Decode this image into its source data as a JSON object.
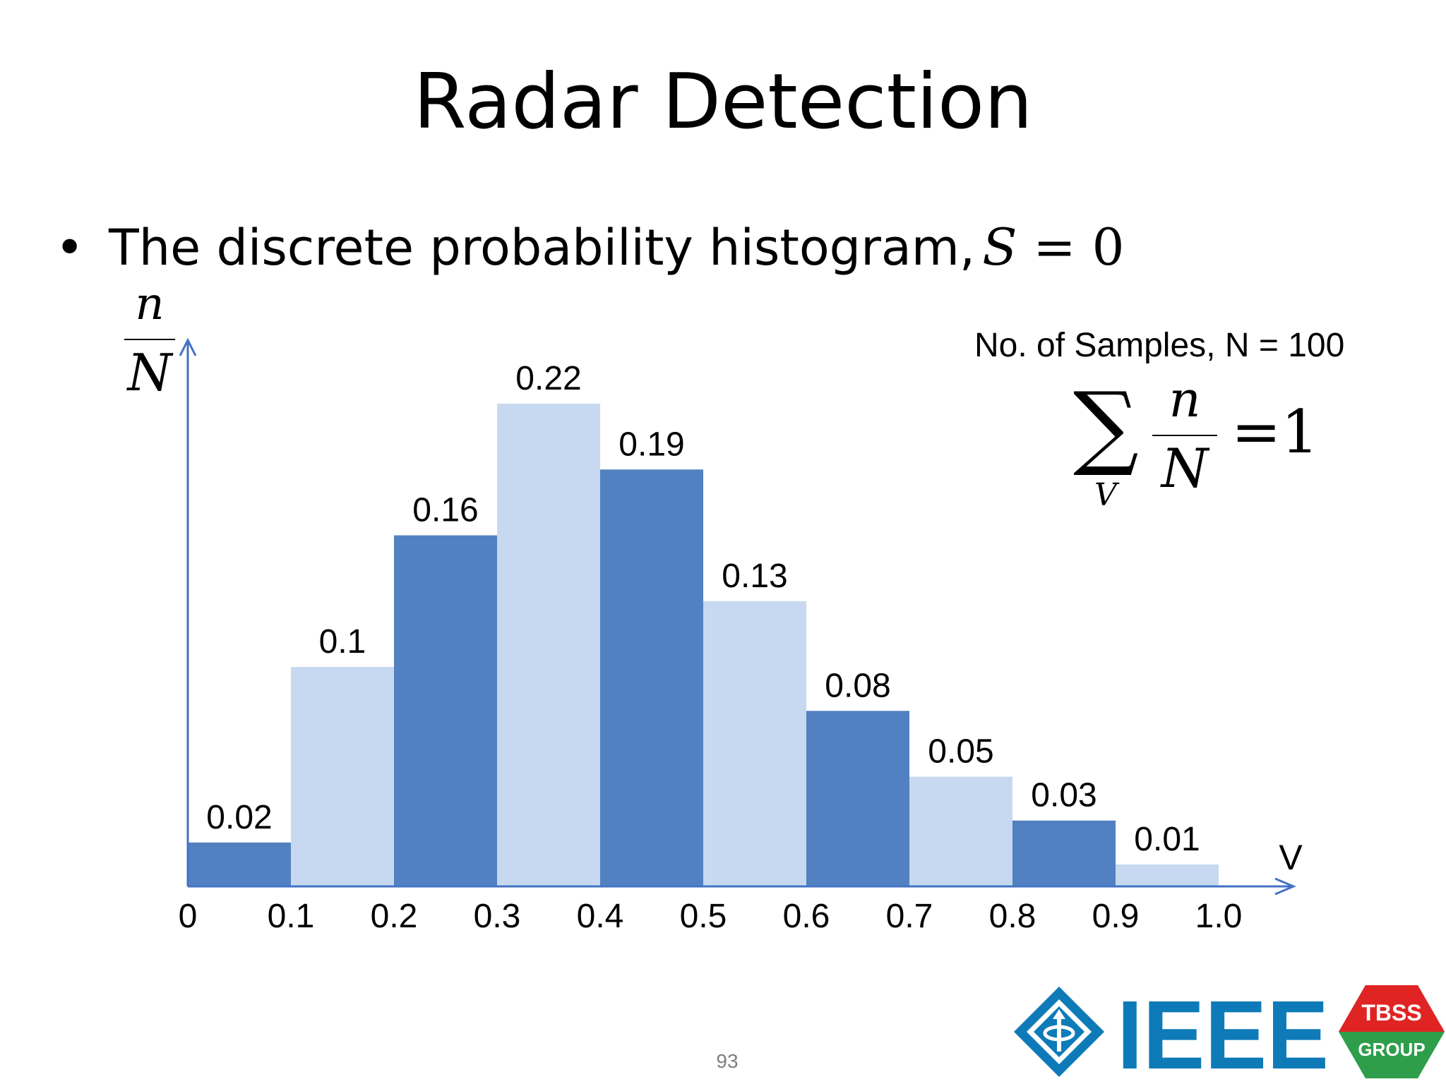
{
  "slide": {
    "title": "Radar Detection",
    "bullet": "The discrete probability histogram,",
    "bullet_math_var": "S",
    "bullet_math_rest": " = 0",
    "page_number": "93"
  },
  "y_axis_fraction": {
    "numerator": "n",
    "denominator": "N"
  },
  "samples_note": "No. of Samples, N = 100",
  "sum_formula": {
    "sigma": "∑",
    "subscript": "V",
    "numerator": "n",
    "denominator": "N",
    "equals": "=1"
  },
  "logos": {
    "ieee": "IEEE",
    "tbss_top": "TBSS",
    "tbss_bottom": "GROUP"
  },
  "colors": {
    "dark_bar": "#5181C0",
    "light_bar": "#C6D9F0",
    "axis": "#4472C4"
  },
  "chart_data": {
    "type": "bar",
    "x_label": "V",
    "y_label": "n/N",
    "bins": [
      {
        "from": 0.0,
        "to": 0.1,
        "value": 0.02,
        "label": "0.02",
        "shade": "dark"
      },
      {
        "from": 0.1,
        "to": 0.2,
        "value": 0.1,
        "label": "0.1",
        "shade": "light"
      },
      {
        "from": 0.2,
        "to": 0.3,
        "value": 0.16,
        "label": "0.16",
        "shade": "dark"
      },
      {
        "from": 0.3,
        "to": 0.4,
        "value": 0.22,
        "label": "0.22",
        "shade": "light"
      },
      {
        "from": 0.4,
        "to": 0.5,
        "value": 0.19,
        "label": "0.19",
        "shade": "dark"
      },
      {
        "from": 0.5,
        "to": 0.6,
        "value": 0.13,
        "label": "0.13",
        "shade": "light"
      },
      {
        "from": 0.6,
        "to": 0.7,
        "value": 0.08,
        "label": "0.08",
        "shade": "dark"
      },
      {
        "from": 0.7,
        "to": 0.8,
        "value": 0.05,
        "label": "0.05",
        "shade": "light"
      },
      {
        "from": 0.8,
        "to": 0.9,
        "value": 0.03,
        "label": "0.03",
        "shade": "dark"
      },
      {
        "from": 0.9,
        "to": 1.0,
        "value": 0.01,
        "label": "0.01",
        "shade": "light"
      }
    ],
    "x_ticks": [
      "0",
      "0.1",
      "0.2",
      "0.3",
      "0.4",
      "0.5",
      "0.6",
      "0.7",
      "0.8",
      "0.9",
      "1.0"
    ],
    "ylim": [
      0,
      0.26
    ],
    "grid": false,
    "legend": false
  }
}
